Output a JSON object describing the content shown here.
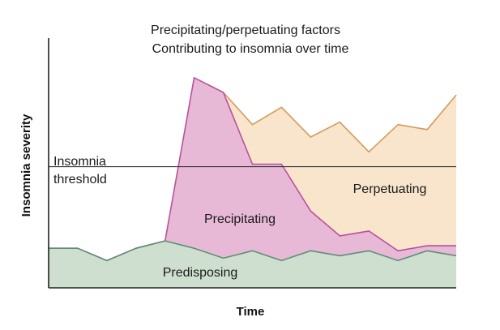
{
  "chart_data": {
    "type": "area",
    "title_lines": [
      "Precipitating/perpetuating factors",
      "Contributing to insomnia over time"
    ],
    "xlabel": "Time",
    "ylabel": "Insomnia severity",
    "xlim": [
      0,
      14
    ],
    "ylim": [
      0,
      10
    ],
    "x": [
      0,
      1,
      2,
      3,
      4,
      5,
      6,
      7,
      8,
      9,
      10,
      11,
      12,
      13,
      14
    ],
    "threshold": {
      "label_lines": [
        "Insomnia",
        "threshold"
      ],
      "value": 4.9
    },
    "series": [
      {
        "name": "Predisposing",
        "color": "#cfdfcf",
        "line": "#5f8f78",
        "values": [
          1.6,
          1.6,
          1.1,
          1.6,
          1.9,
          1.6,
          1.2,
          1.5,
          1.1,
          1.5,
          1.3,
          1.5,
          1.1,
          1.5,
          1.3
        ]
      },
      {
        "name": "Precipitating",
        "color": "#e7b9d7",
        "line": "#b8529a",
        "values": [
          1.6,
          1.6,
          1.1,
          1.6,
          1.9,
          8.5,
          7.9,
          5.0,
          5.0,
          3.1,
          2.1,
          2.3,
          1.5,
          1.7,
          1.7
        ]
      },
      {
        "name": "Perpetuating",
        "color": "#f8e5cc",
        "line": "#d59a5c",
        "values": [
          null,
          null,
          null,
          null,
          null,
          null,
          7.9,
          6.6,
          7.3,
          6.1,
          6.7,
          5.5,
          6.6,
          6.4,
          7.8
        ]
      }
    ]
  }
}
